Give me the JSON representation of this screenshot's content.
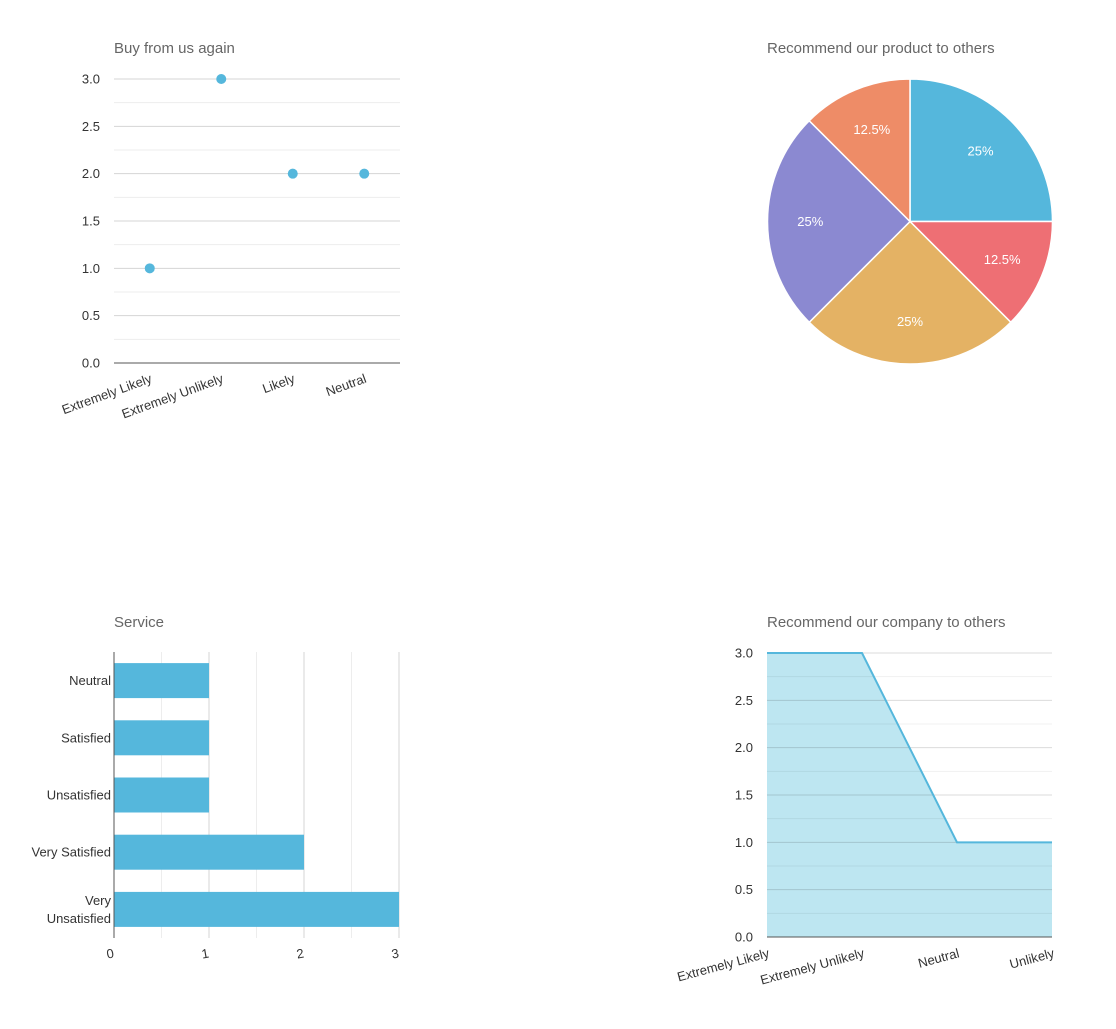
{
  "chart_data": [
    {
      "type": "scatter",
      "title": "Buy from us again",
      "categories": [
        "Extremely Likely",
        "Extremely Unlikely",
        "Likely",
        "Neutral"
      ],
      "values": [
        1,
        3,
        2,
        2
      ],
      "ylim": [
        0,
        3
      ],
      "yticks": [
        "0.0",
        "0.5",
        "1.0",
        "1.5",
        "2.0",
        "2.5",
        "3.0"
      ],
      "grid": true,
      "color": "#55b7dc"
    },
    {
      "type": "pie",
      "title": "Recommend our product to others",
      "slices": [
        {
          "value": 25,
          "label": "25%",
          "color": "#55b7dc"
        },
        {
          "value": 12.5,
          "label": "12.5%",
          "color": "#ee6f74"
        },
        {
          "value": 25,
          "label": "25%",
          "color": "#e4b264"
        },
        {
          "value": 25,
          "label": "25%",
          "color": "#8b89d1"
        },
        {
          "value": 12.5,
          "label": "12.5%",
          "color": "#ee8c67"
        }
      ]
    },
    {
      "type": "bar",
      "orientation": "horizontal",
      "title": "Service",
      "categories": [
        "Neutral",
        "Satisfied",
        "Unsatisfied",
        "Very Satisfied",
        "Very Unsatisfied"
      ],
      "values": [
        1,
        1,
        1,
        2,
        3
      ],
      "xlim": [
        0,
        3
      ],
      "xticks": [
        "0",
        "1",
        "2",
        "3"
      ],
      "grid": true,
      "color": "#55b7dc"
    },
    {
      "type": "area",
      "title": "Recommend our company to others",
      "categories": [
        "Extremely Likely",
        "Extremely Unlikely",
        "Neutral",
        "Unlikely"
      ],
      "values": [
        3,
        3,
        1,
        1
      ],
      "ylim": [
        0,
        3
      ],
      "yticks": [
        "0.0",
        "0.5",
        "1.0",
        "1.5",
        "2.0",
        "2.5",
        "3.0"
      ],
      "grid": true,
      "color": "#55b7dc",
      "fill": "#bde6f1"
    }
  ]
}
